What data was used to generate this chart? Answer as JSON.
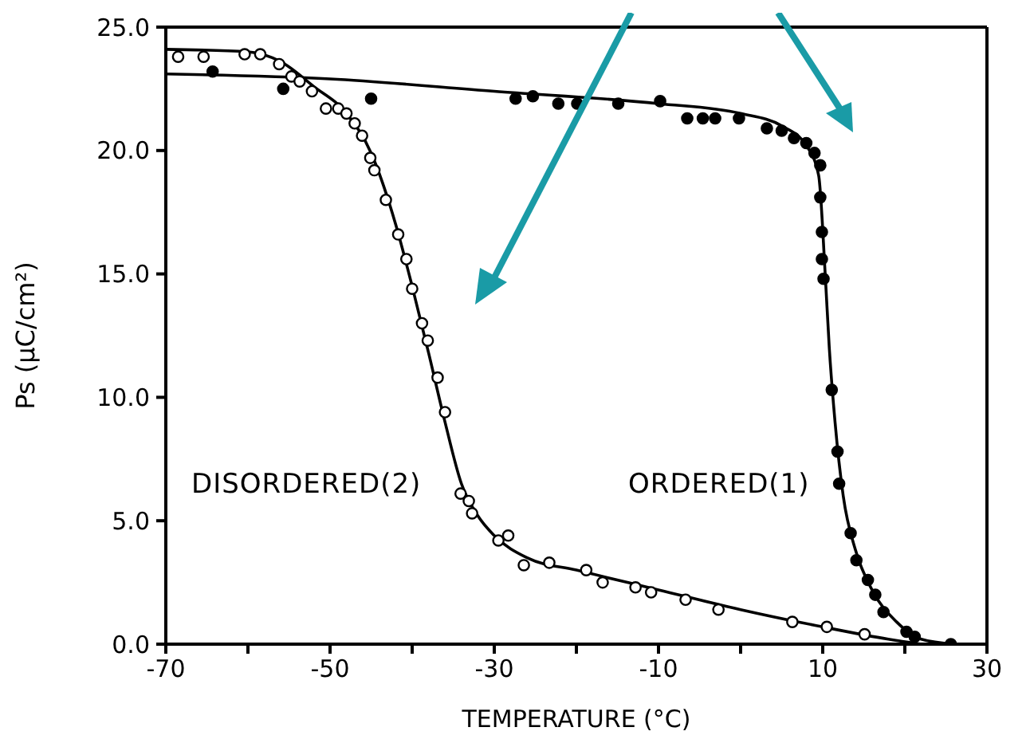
{
  "chart_data": {
    "type": "scatter",
    "xlabel": "TEMPERATURE (°C)",
    "ylabel": "Ps (μC/cm²)",
    "annotations": [
      "DISORDERED(2)",
      "ORDERED(1)"
    ],
    "xlim": [
      -70,
      30
    ],
    "xticks": [
      -70,
      {
        "value": -60,
        "label": null
      },
      -50,
      {
        "value": -40,
        "label": null
      },
      -30,
      {
        "value": -20,
        "label": null
      },
      -10,
      {
        "value": 0,
        "label": null
      },
      10,
      {
        "value": 20,
        "label": null
      },
      30
    ],
    "ylim": [
      0,
      25
    ],
    "yticks": [
      {
        "value": 0,
        "label": "0.0"
      },
      {
        "value": 5,
        "label": "5.0"
      },
      {
        "value": 10,
        "label": "10.0"
      },
      {
        "value": 15,
        "label": "15.0"
      },
      {
        "value": 20,
        "label": "20.0"
      },
      {
        "value": 25,
        "label": "25.0"
      }
    ],
    "marker": "circle",
    "series": [
      {
        "color": "#000000",
        "x": [
          -68.5,
          -65.4,
          -60.4,
          -58.5,
          -56.2,
          -54.7,
          -53.7,
          -52.2,
          -50.5,
          -49,
          -48,
          -47,
          -46.1,
          -45.1,
          -44.6,
          -43.2,
          -41.7,
          -40.7,
          -40,
          -38.8,
          -38.1,
          -36.9,
          -36,
          -34.1,
          -33.1,
          -32.7,
          -29.5,
          -28.3,
          -26.4,
          -23.3,
          -18.8,
          -16.8,
          -12.8,
          -10.9,
          -6.7,
          -2.7,
          6.3,
          10.5,
          15.1
        ],
        "values": [
          23.8,
          23.8,
          23.9,
          23.9,
          23.5,
          23,
          22.8,
          22.4,
          21.7,
          21.7,
          21.5,
          21.1,
          20.6,
          19.7,
          19.2,
          18,
          16.6,
          15.6,
          14.4,
          13,
          12.3,
          10.8,
          9.4,
          6.1,
          5.8,
          5.3,
          4.2,
          4.4,
          3.2,
          3.3,
          3,
          2.5,
          2.3,
          2.1,
          1.8,
          1.4,
          0.9,
          0.7,
          0.4
        ]
      },
      {
        "color": "#000000",
        "x": [
          -64.3,
          -55.7,
          -45,
          -27.4,
          -25.3,
          -22.2,
          -19.9,
          -14.9,
          -9.8,
          -6.5,
          -4.6,
          -3.1,
          -0.2,
          3.2,
          5,
          6.5,
          8,
          9,
          9.7,
          9.7,
          9.9,
          9.9,
          10.1,
          11.1,
          11.8,
          12,
          13.4,
          14.1,
          15.5,
          16.4,
          17.4,
          20.2,
          21.2,
          25.6
        ],
        "values": [
          23.2,
          22.5,
          22.1,
          22.1,
          22.2,
          21.9,
          21.9,
          21.9,
          22,
          21.3,
          21.3,
          21.3,
          21.3,
          20.9,
          20.8,
          20.5,
          20.3,
          19.9,
          19.4,
          18.1,
          16.7,
          15.6,
          14.8,
          10.3,
          7.8,
          6.5,
          4.5,
          3.4,
          2.6,
          2,
          1.3,
          0.5,
          0.3,
          0
        ]
      },
      {
        "type": "line",
        "color": "#000000",
        "marker": "none",
        "x": [
          -70,
          -60,
          -56,
          -52,
          -48,
          -45,
          -42,
          -40,
          -38,
          -36,
          -34,
          -32,
          -30,
          -26,
          -20,
          -10,
          0,
          10,
          18,
          22
        ],
        "values": [
          24.1,
          24,
          23.6,
          22.6,
          21.5,
          19.9,
          17,
          14.5,
          11.8,
          9,
          6.5,
          5.2,
          4.4,
          3.5,
          3,
          2.2,
          1.4,
          0.7,
          0.2,
          0
        ]
      },
      {
        "type": "line",
        "color": "#000000",
        "marker": "none",
        "x": [
          -70,
          -50,
          -30,
          -10,
          0,
          5,
          8,
          9.5,
          10.3,
          10.8,
          11.5,
          12.5,
          14,
          16,
          19,
          22,
          26
        ],
        "values": [
          23.1,
          22.9,
          22.4,
          21.9,
          21.5,
          21,
          20.2,
          19,
          15,
          12,
          9,
          6,
          3.8,
          2.2,
          0.9,
          0.2,
          0
        ]
      }
    ]
  }
}
